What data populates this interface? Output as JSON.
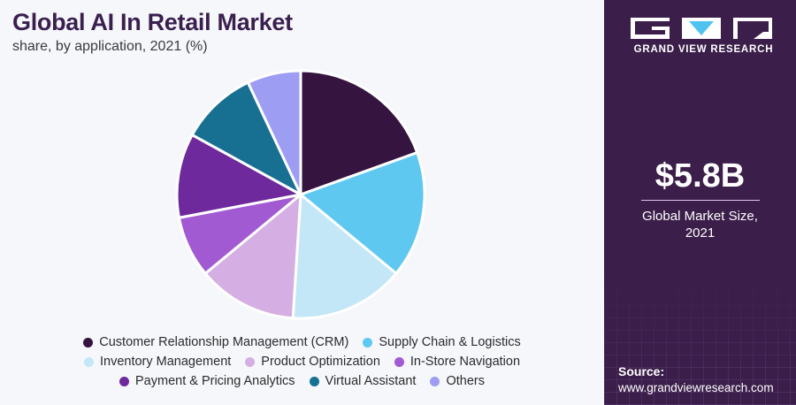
{
  "header": {
    "title": "Global AI In Retail Market",
    "subtitle": "share, by application, 2021 (%)"
  },
  "chart_data": {
    "type": "pie",
    "start_angle_deg": 0,
    "direction": "clockwise",
    "labels": [
      "Customer Relationship Management (CRM)",
      "Supply Chain & Logistics",
      "Inventory Management",
      "Product Optimization",
      "In-Store Navigation",
      "Payment & Pricing Analytics",
      "Virtual Assistant",
      "Others"
    ],
    "values": [
      19.5,
      16.5,
      15,
      13,
      8,
      11,
      10,
      7
    ],
    "colors": [
      "#35143f",
      "#5fc8f1",
      "#c3e7f7",
      "#d5aee4",
      "#a25ad3",
      "#6e2a9c",
      "#177092",
      "#9d9df3"
    ],
    "legend_position": "bottom"
  },
  "legend_rows": [
    [
      0,
      1
    ],
    [
      2,
      3,
      4
    ],
    [
      5,
      6,
      7
    ]
  ],
  "sidebar": {
    "logo_text": "GRAND VIEW RESEARCH",
    "market_size": "$5.8B",
    "market_label_line1": "Global Market Size,",
    "market_label_line2": "2021",
    "source_label": "Source:",
    "source_url": "www.grandviewresearch.com"
  }
}
